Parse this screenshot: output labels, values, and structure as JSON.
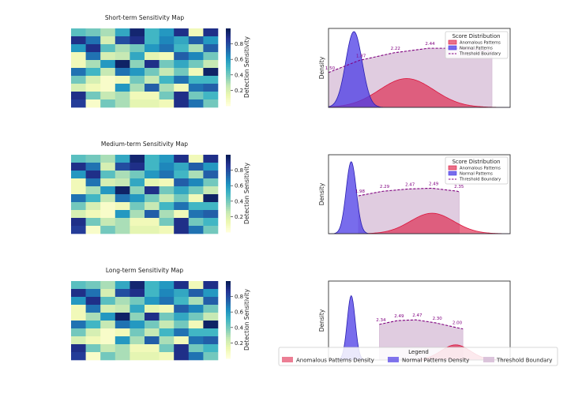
{
  "chart_data": {
    "type": "composite",
    "heatmaps": [
      {
        "title": "Short-term Sensitivity Map"
      },
      {
        "title": "Medium-term Sensitivity Map"
      },
      {
        "title": "Long-term Sensitivity Map"
      }
    ],
    "heatmap_matrix": [
      [
        0.45,
        0.4,
        0.3,
        0.55,
        0.95,
        0.5,
        0.6,
        0.9,
        0.1,
        0.9
      ],
      [
        0.9,
        0.7,
        0.2,
        0.8,
        0.9,
        0.5,
        0.65,
        0.55,
        0.75,
        0.6
      ],
      [
        0.6,
        0.9,
        0.45,
        0.3,
        0.4,
        0.6,
        0.7,
        0.5,
        0.3,
        0.75
      ],
      [
        0.1,
        0.7,
        0.2,
        0.25,
        0.55,
        0.15,
        0.1,
        0.75,
        0.65,
        0.4
      ],
      [
        0.1,
        0.3,
        0.6,
        0.97,
        0.35,
        0.9,
        0.4,
        0.55,
        0.4,
        0.25
      ],
      [
        0.7,
        0.5,
        0.25,
        0.7,
        0.6,
        0.4,
        0.25,
        0.4,
        0.1,
        0.97
      ],
      [
        0.4,
        0.2,
        0.05,
        0.1,
        0.4,
        0.25,
        0.5,
        0.7,
        0.5,
        0.5
      ],
      [
        0.2,
        0.1,
        0.05,
        0.6,
        0.3,
        0.75,
        0.3,
        0.1,
        0.7,
        0.75
      ],
      [
        0.9,
        0.4,
        0.25,
        0.3,
        0.1,
        0.1,
        0.4,
        0.9,
        0.4,
        0.5
      ],
      [
        0.85,
        0.05,
        0.4,
        0.3,
        0.15,
        0.15,
        0.1,
        0.9,
        0.7,
        0.4
      ]
    ],
    "colorbar": {
      "label": "Detection Sensitivity",
      "ticks": [
        "0.2",
        "0.4",
        "0.6",
        "0.8"
      ],
      "tick_values": [
        0.2,
        0.4,
        0.6,
        0.8
      ],
      "range": [
        0.0,
        1.0
      ]
    },
    "density_plots": [
      {
        "ylabel": "Density",
        "x_range": [
          0,
          10
        ],
        "normal": {
          "mean": 1.4,
          "sd": 0.45,
          "peak": 1.0
        },
        "anomalous": {
          "mean": 4.3,
          "sd": 1.5,
          "peak": 0.38
        },
        "threshold": {
          "x": [
            0.0,
            1.7,
            3.6,
            5.5,
            7.5,
            9.0
          ],
          "y": [
            0.46,
            0.62,
            0.72,
            0.78,
            0.78,
            0.74
          ],
          "x_end": 9.0
        },
        "threshold_labels": [
          {
            "x": 0.0,
            "y": 0.46,
            "text": "1.50"
          },
          {
            "x": 1.7,
            "y": 0.62,
            "text": "1.87"
          },
          {
            "x": 3.6,
            "y": 0.72,
            "text": "2.22"
          },
          {
            "x": 5.5,
            "y": 0.78,
            "text": "2.44"
          }
        ],
        "legend_title": "Score Distribution",
        "legend_items": [
          "Anomalous Patterns",
          "Normal Patterns",
          "Threshold Boundary"
        ]
      },
      {
        "ylabel": "Density",
        "x_range": [
          0,
          10
        ],
        "normal": {
          "mean": 1.25,
          "sd": 0.28,
          "peak": 0.95
        },
        "anomalous": {
          "mean": 5.7,
          "sd": 1.2,
          "peak": 0.27
        },
        "threshold": {
          "x": [
            1.65,
            3.0,
            4.4,
            5.7,
            7.1,
            7.2
          ],
          "y": [
            0.5,
            0.56,
            0.59,
            0.6,
            0.56,
            0.55
          ],
          "x_end": 7.2
        },
        "threshold_labels": [
          {
            "x": 1.65,
            "y": 0.5,
            "text": "1.98"
          },
          {
            "x": 3.0,
            "y": 0.56,
            "text": "2.29"
          },
          {
            "x": 4.4,
            "y": 0.59,
            "text": "2.47"
          },
          {
            "x": 5.7,
            "y": 0.6,
            "text": "2.49"
          },
          {
            "x": 7.1,
            "y": 0.56,
            "text": "2.35"
          }
        ],
        "legend_title": "Score Distribution",
        "legend_items": [
          "Anomalous Patterns",
          "Normal Patterns",
          "Threshold Boundary"
        ]
      },
      {
        "ylabel": "Density",
        "x_range": [
          0,
          10
        ],
        "normal": {
          "mean": 1.25,
          "sd": 0.22,
          "peak": 0.85
        },
        "anomalous": {
          "mean": 7.0,
          "sd": 0.8,
          "peak": 0.2
        },
        "threshold": {
          "x": [
            2.8,
            3.8,
            4.8,
            5.9,
            7.0,
            7.4
          ],
          "y": [
            0.47,
            0.52,
            0.53,
            0.49,
            0.43,
            0.41
          ],
          "x_end": 7.4
        },
        "threshold_labels": [
          {
            "x": 2.8,
            "y": 0.47,
            "text": "2.34"
          },
          {
            "x": 3.8,
            "y": 0.52,
            "text": "2.49"
          },
          {
            "x": 4.8,
            "y": 0.53,
            "text": "2.47"
          },
          {
            "x": 5.9,
            "y": 0.49,
            "text": "2.30"
          },
          {
            "x": 7.0,
            "y": 0.43,
            "text": "2.00"
          }
        ]
      }
    ],
    "bottom_legend": {
      "title": "Legend",
      "items": [
        "Anomalous Patterns Density",
        "Normal Patterns Density",
        "Threshold Boundary"
      ]
    }
  },
  "colors": {
    "anomalous_fill": "#dc143c",
    "normal_fill": "#4b3be6",
    "threshold_fill": "#d8bfd8",
    "threshold_line": "#800080",
    "axis": "#333333"
  }
}
